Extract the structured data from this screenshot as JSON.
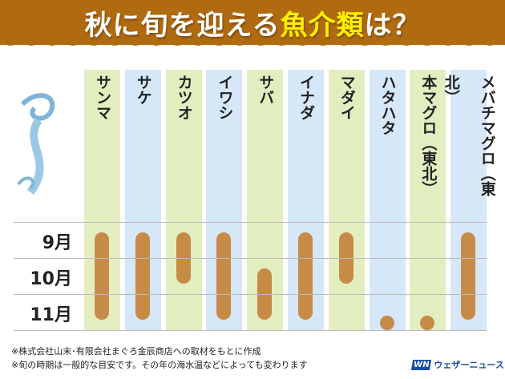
{
  "title": {
    "part1": "秋に旬を迎える",
    "part2": "魚介類",
    "part3": "は？"
  },
  "colors": {
    "header": "#b06a10",
    "highlight": "#ffef00",
    "bar": "#c68b47",
    "green": "#e3eec0",
    "blue": "#d6e7f8"
  },
  "chart_data": {
    "type": "table",
    "title": "秋に旬を迎える魚介類は？",
    "months": [
      "9月",
      "10月",
      "11月"
    ],
    "fish": [
      {
        "name": "サンマ",
        "season": [
          9,
          11
        ]
      },
      {
        "name": "サケ",
        "season": [
          9,
          11
        ]
      },
      {
        "name": "カツオ",
        "season": [
          9,
          10
        ]
      },
      {
        "name": "イワシ",
        "season": [
          9,
          11
        ]
      },
      {
        "name": "サバ",
        "season": [
          10,
          11
        ]
      },
      {
        "name": "イナダ",
        "season": [
          9,
          11
        ]
      },
      {
        "name": "マダイ",
        "season": [
          9,
          10
        ]
      },
      {
        "name": "ハタハタ",
        "season": [
          11,
          11
        ]
      },
      {
        "name": "本マグロ（東北）",
        "season": [
          11,
          11
        ]
      },
      {
        "name": "メバチマグロ（東北）",
        "season": [
          9,
          11
        ]
      }
    ]
  },
  "notes": [
    "※株式会社山末･有限会社まぐろ金辰商店への取材をもとに作成",
    "※旬の時期は一般的な目安です。その年の海水温などによっても変わります"
  ],
  "logo": {
    "mark": "WN",
    "text": "ウェザーニュース"
  }
}
